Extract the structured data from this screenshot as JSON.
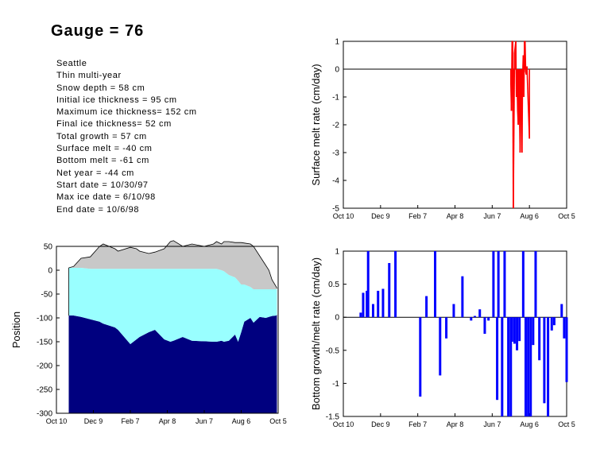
{
  "title": "Gauge = 76",
  "info": [
    "Seattle",
    "Thin multi-year",
    "Snow depth = 58 cm",
    "Initial ice thickness = 95 cm",
    "Maximum ice thickness= 152 cm",
    "Final ice thickness= 52 cm",
    "Total growth = 57 cm",
    "Surface melt = -40 cm",
    "Bottom melt = -61 cm",
    "Net year = -44 cm",
    "Start date = 10/30/97",
    "Max ice date = 6/10/98",
    "End date = 10/6/98"
  ],
  "colors": {
    "snow": "#c8c8c8",
    "ice": "#99ffff",
    "water": "#00007f",
    "surface_melt": "#ff0000",
    "bottom": "#0000ff"
  },
  "chart_data": [
    {
      "type": "line",
      "id": "surface_melt",
      "ylabel": "Surface melt rate (cm/day)",
      "xlabel": "",
      "x_tick_labels": [
        "Oct 10",
        "Dec 9",
        "Feb 7",
        "Apr 8",
        "Jun 7",
        "Aug 6",
        "Oct 5"
      ],
      "x_tick_days": [
        0,
        60,
        120,
        180,
        240,
        300,
        360
      ],
      "xlim": [
        0,
        360
      ],
      "ylim": [
        -5,
        1
      ],
      "y_ticks": [
        -5,
        -4,
        -3,
        -2,
        -1,
        0,
        1
      ],
      "zero_line": true,
      "series": [
        {
          "color": "#ff0000",
          "x": [
            270,
            271,
            272,
            273,
            274,
            276,
            278,
            279,
            280,
            281,
            282,
            283,
            284,
            285,
            286,
            287,
            288,
            289,
            290,
            291,
            292,
            293,
            294,
            295,
            296,
            300
          ],
          "y": [
            -0.5,
            -1.5,
            1,
            1,
            -5,
            0.6,
            1,
            -1,
            -0.3,
            -1.5,
            -2,
            -0.5,
            -1.6,
            -3,
            -0.2,
            -1,
            -3,
            -0.3,
            0.5,
            -1,
            1,
            1,
            -0.1,
            -0.2,
            0.1,
            -2.5
          ]
        }
      ]
    },
    {
      "type": "bar",
      "id": "bottom_rate",
      "ylabel": "Bottom growth/melt rate (cm/day)",
      "xlabel": "",
      "x_tick_labels": [
        "Oct 10",
        "Dec 9",
        "Feb 7",
        "Apr 8",
        "Jun 7",
        "Aug 6",
        "Oct 5"
      ],
      "x_tick_days": [
        0,
        60,
        120,
        180,
        240,
        300,
        360
      ],
      "xlim": [
        0,
        360
      ],
      "ylim": [
        -1.5,
        1
      ],
      "y_ticks": [
        -1.5,
        -1,
        -0.5,
        0,
        0.5,
        1
      ],
      "zero_line": true,
      "series": [
        {
          "color": "#0000ff",
          "x": [
            28,
            32,
            38,
            40,
            48,
            56,
            64,
            74,
            84,
            124,
            134,
            148,
            156,
            166,
            178,
            192,
            206,
            212,
            220,
            228,
            234,
            242,
            248,
            250,
            256,
            260,
            266,
            270,
            272,
            276,
            280,
            284,
            290,
            294,
            298,
            302,
            306,
            310,
            316,
            324,
            330,
            336,
            340,
            352,
            356,
            360
          ],
          "y": [
            0.07,
            0.37,
            0.4,
            1,
            0.2,
            0.4,
            0.43,
            0.82,
            1,
            -1.2,
            0.32,
            1,
            -0.88,
            -0.32,
            0.2,
            0.62,
            -0.05,
            0.02,
            0.12,
            -0.25,
            -0.05,
            1,
            -1.25,
            1,
            -1.5,
            1,
            -1.5,
            -1.5,
            -0.37,
            -0.4,
            -0.5,
            -0.36,
            1,
            -1.5,
            -1.5,
            -1.5,
            -0.42,
            1,
            -0.65,
            -1.3,
            -1.5,
            -0.2,
            -0.12,
            0.2,
            -0.32,
            -0.98
          ]
        }
      ]
    },
    {
      "type": "area",
      "id": "position",
      "ylabel": "Position",
      "xlabel": "",
      "x_tick_labels": [
        "Oct 10",
        "Dec 9",
        "Feb 7",
        "Apr 8",
        "Jun 7",
        "Aug 6",
        "Oct 5"
      ],
      "x_tick_days": [
        0,
        60,
        120,
        180,
        240,
        300,
        360
      ],
      "xlim": [
        0,
        360
      ],
      "ylim": [
        -300,
        50
      ],
      "y_ticks": [
        -300,
        -250,
        -200,
        -150,
        -100,
        -50,
        0,
        50
      ],
      "x": [
        20,
        28,
        40,
        55,
        70,
        76,
        95,
        100,
        120,
        130,
        135,
        150,
        160,
        175,
        185,
        190,
        205,
        220,
        240,
        255,
        260,
        268,
        272,
        280,
        290,
        295,
        300,
        305,
        315,
        320,
        330,
        340,
        345,
        350,
        357,
        358
      ],
      "series": [
        {
          "name": "snow_surface",
          "y": [
            5,
            8,
            25,
            28,
            50,
            55,
            45,
            40,
            48,
            45,
            40,
            35,
            38,
            45,
            60,
            62,
            50,
            55,
            50,
            55,
            60,
            55,
            60,
            60,
            58,
            58,
            58,
            57,
            55,
            50,
            30,
            10,
            0,
            -20,
            -35,
            -38
          ]
        },
        {
          "name": "ice_surface",
          "y": [
            5,
            5,
            5,
            3,
            3,
            3,
            3,
            3,
            3,
            3,
            3,
            3,
            3,
            3,
            3,
            3,
            3,
            3,
            3,
            3,
            3,
            0,
            -2,
            -10,
            -15,
            -22,
            -30,
            -30,
            -35,
            -40,
            -40,
            -40,
            -40,
            -40,
            -40,
            -40
          ]
        },
        {
          "name": "ice_bottom",
          "y": [
            -95,
            -95,
            -98,
            -103,
            -108,
            -112,
            -120,
            -125,
            -155,
            -145,
            -140,
            -130,
            -125,
            -145,
            -150,
            -148,
            -140,
            -148,
            -149,
            -150,
            -150,
            -148,
            -150,
            -148,
            -135,
            -150,
            -130,
            -108,
            -100,
            -110,
            -98,
            -100,
            -98,
            -96,
            -95,
            -93
          ]
        }
      ]
    }
  ]
}
